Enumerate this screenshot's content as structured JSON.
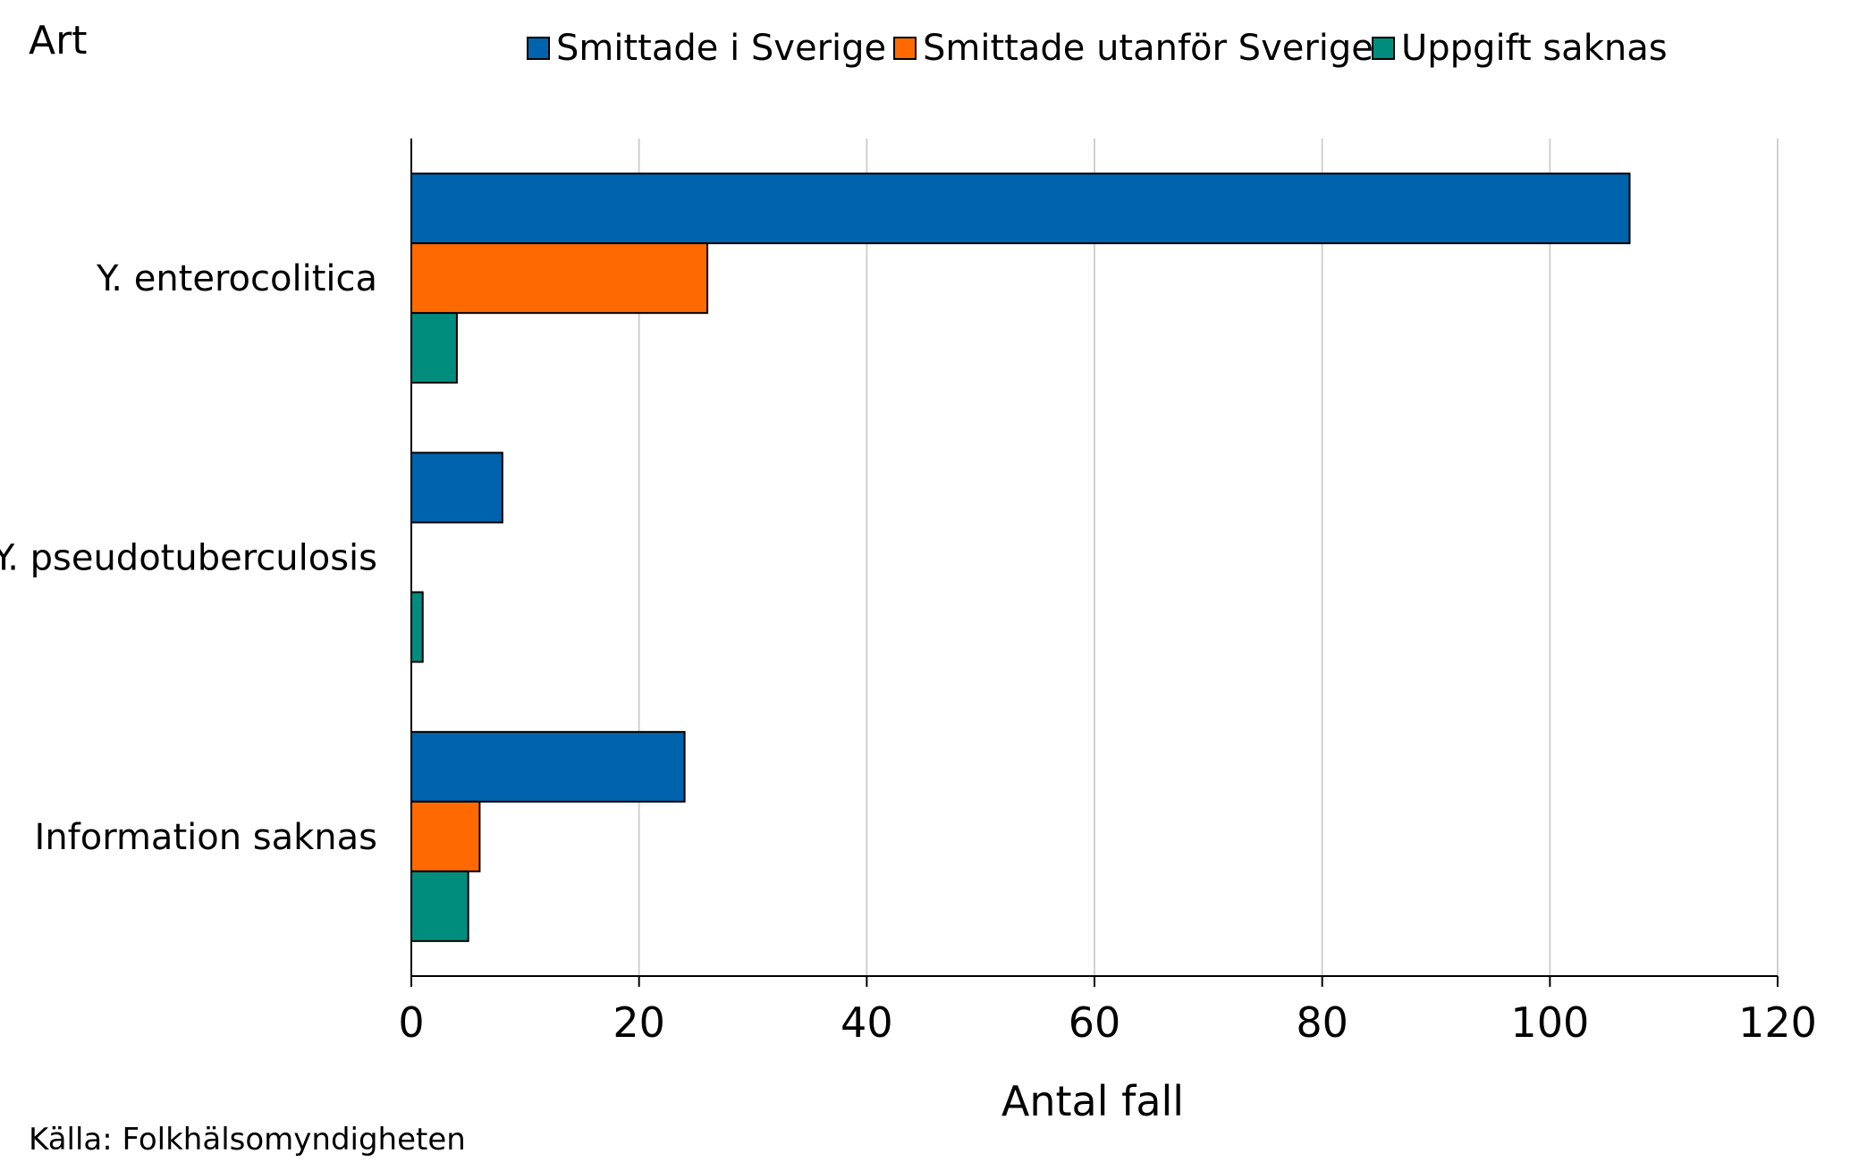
{
  "chart_data": {
    "type": "bar",
    "orientation": "horizontal",
    "ylabel": "Art",
    "xlabel": "Antal fall",
    "categories": [
      "Y. enterocolitica",
      "Y. pseudotuberculosis",
      "Information saknas"
    ],
    "series": [
      {
        "name": "Smittade i Sverige",
        "color": "#0063AE",
        "values": [
          107,
          8,
          24
        ]
      },
      {
        "name": "Smittade utanför Sverige",
        "color": "#FF6A00",
        "values": [
          26,
          0,
          6
        ]
      },
      {
        "name": "Uppgift saknas",
        "color": "#008D7D",
        "values": [
          4,
          1,
          5
        ]
      }
    ],
    "xlim": [
      0,
      120
    ],
    "xticks": [
      0,
      20,
      40,
      60,
      80,
      100,
      120
    ],
    "grid": true,
    "legend_position": "top"
  },
  "source": "Källa: Folkhälsomyndigheten"
}
